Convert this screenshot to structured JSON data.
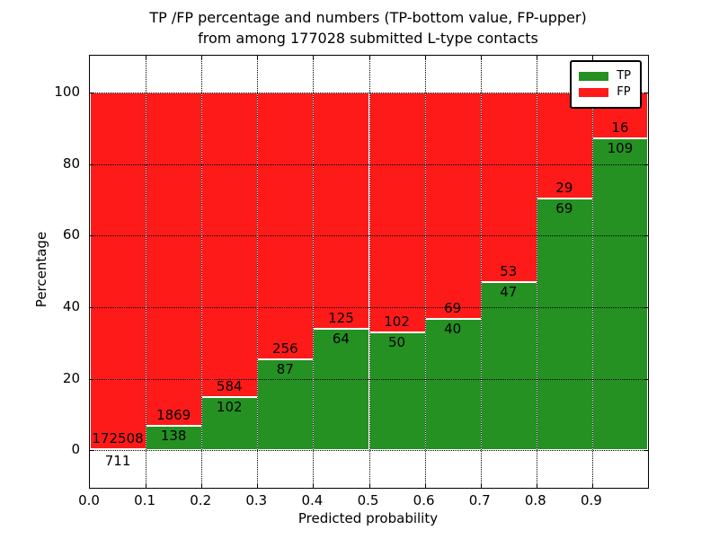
{
  "title": {
    "line1": "TP /FP percentage and numbers (TP-bottom value, FP-upper)",
    "line2": "from among 177028 submitted L-type contacts"
  },
  "chart_data": {
    "type": "bar",
    "stacked": true,
    "normalized_to_percent": true,
    "title": "TP /FP percentage and numbers (TP-bottom value, FP-upper) from among 177028 submitted L-type contacts",
    "xlabel": "Predicted probability",
    "ylabel": "Percentage",
    "categories": [
      "0.0-0.1",
      "0.1-0.2",
      "0.2-0.3",
      "0.3-0.4",
      "0.4-0.5",
      "0.5-0.6",
      "0.6-0.7",
      "0.7-0.8",
      "0.8-0.9",
      "0.9-1.0"
    ],
    "bin_edges": [
      0.0,
      0.1,
      0.2,
      0.3,
      0.4,
      0.5,
      0.6,
      0.7,
      0.8,
      0.9,
      1.0
    ],
    "series": [
      {
        "name": "TP",
        "color": "#249122",
        "position": "bottom",
        "values": [
          711,
          138,
          102,
          87,
          64,
          50,
          40,
          47,
          69,
          109
        ]
      },
      {
        "name": "FP",
        "color": "#FF1A1A",
        "position": "top",
        "values": [
          172508,
          1869,
          584,
          256,
          125,
          102,
          69,
          53,
          29,
          16
        ]
      }
    ],
    "tp_percent_of_bin": [
      0.41,
      6.88,
      14.87,
      25.36,
      33.86,
      32.89,
      36.7,
      47.0,
      70.41,
      87.2
    ],
    "total_submitted": 177028,
    "xlim": [
      0.0,
      1.0
    ],
    "ylim": [
      -10.5,
      110.3
    ],
    "x_tick_labels": [
      "0.0",
      "0.1",
      "0.2",
      "0.3",
      "0.4",
      "0.5",
      "0.6",
      "0.7",
      "0.8",
      "0.9"
    ],
    "y_tick_values": [
      0,
      20,
      40,
      60,
      80,
      100
    ],
    "y_tick_labels": [
      "0",
      "20",
      "40",
      "60",
      "80",
      "100"
    ],
    "grid": "dotted both axes",
    "legend": {
      "position": "upper right",
      "entries": [
        {
          "label": "TP",
          "color": "#249122"
        },
        {
          "label": "FP",
          "color": "#FF1A1A"
        }
      ]
    }
  }
}
